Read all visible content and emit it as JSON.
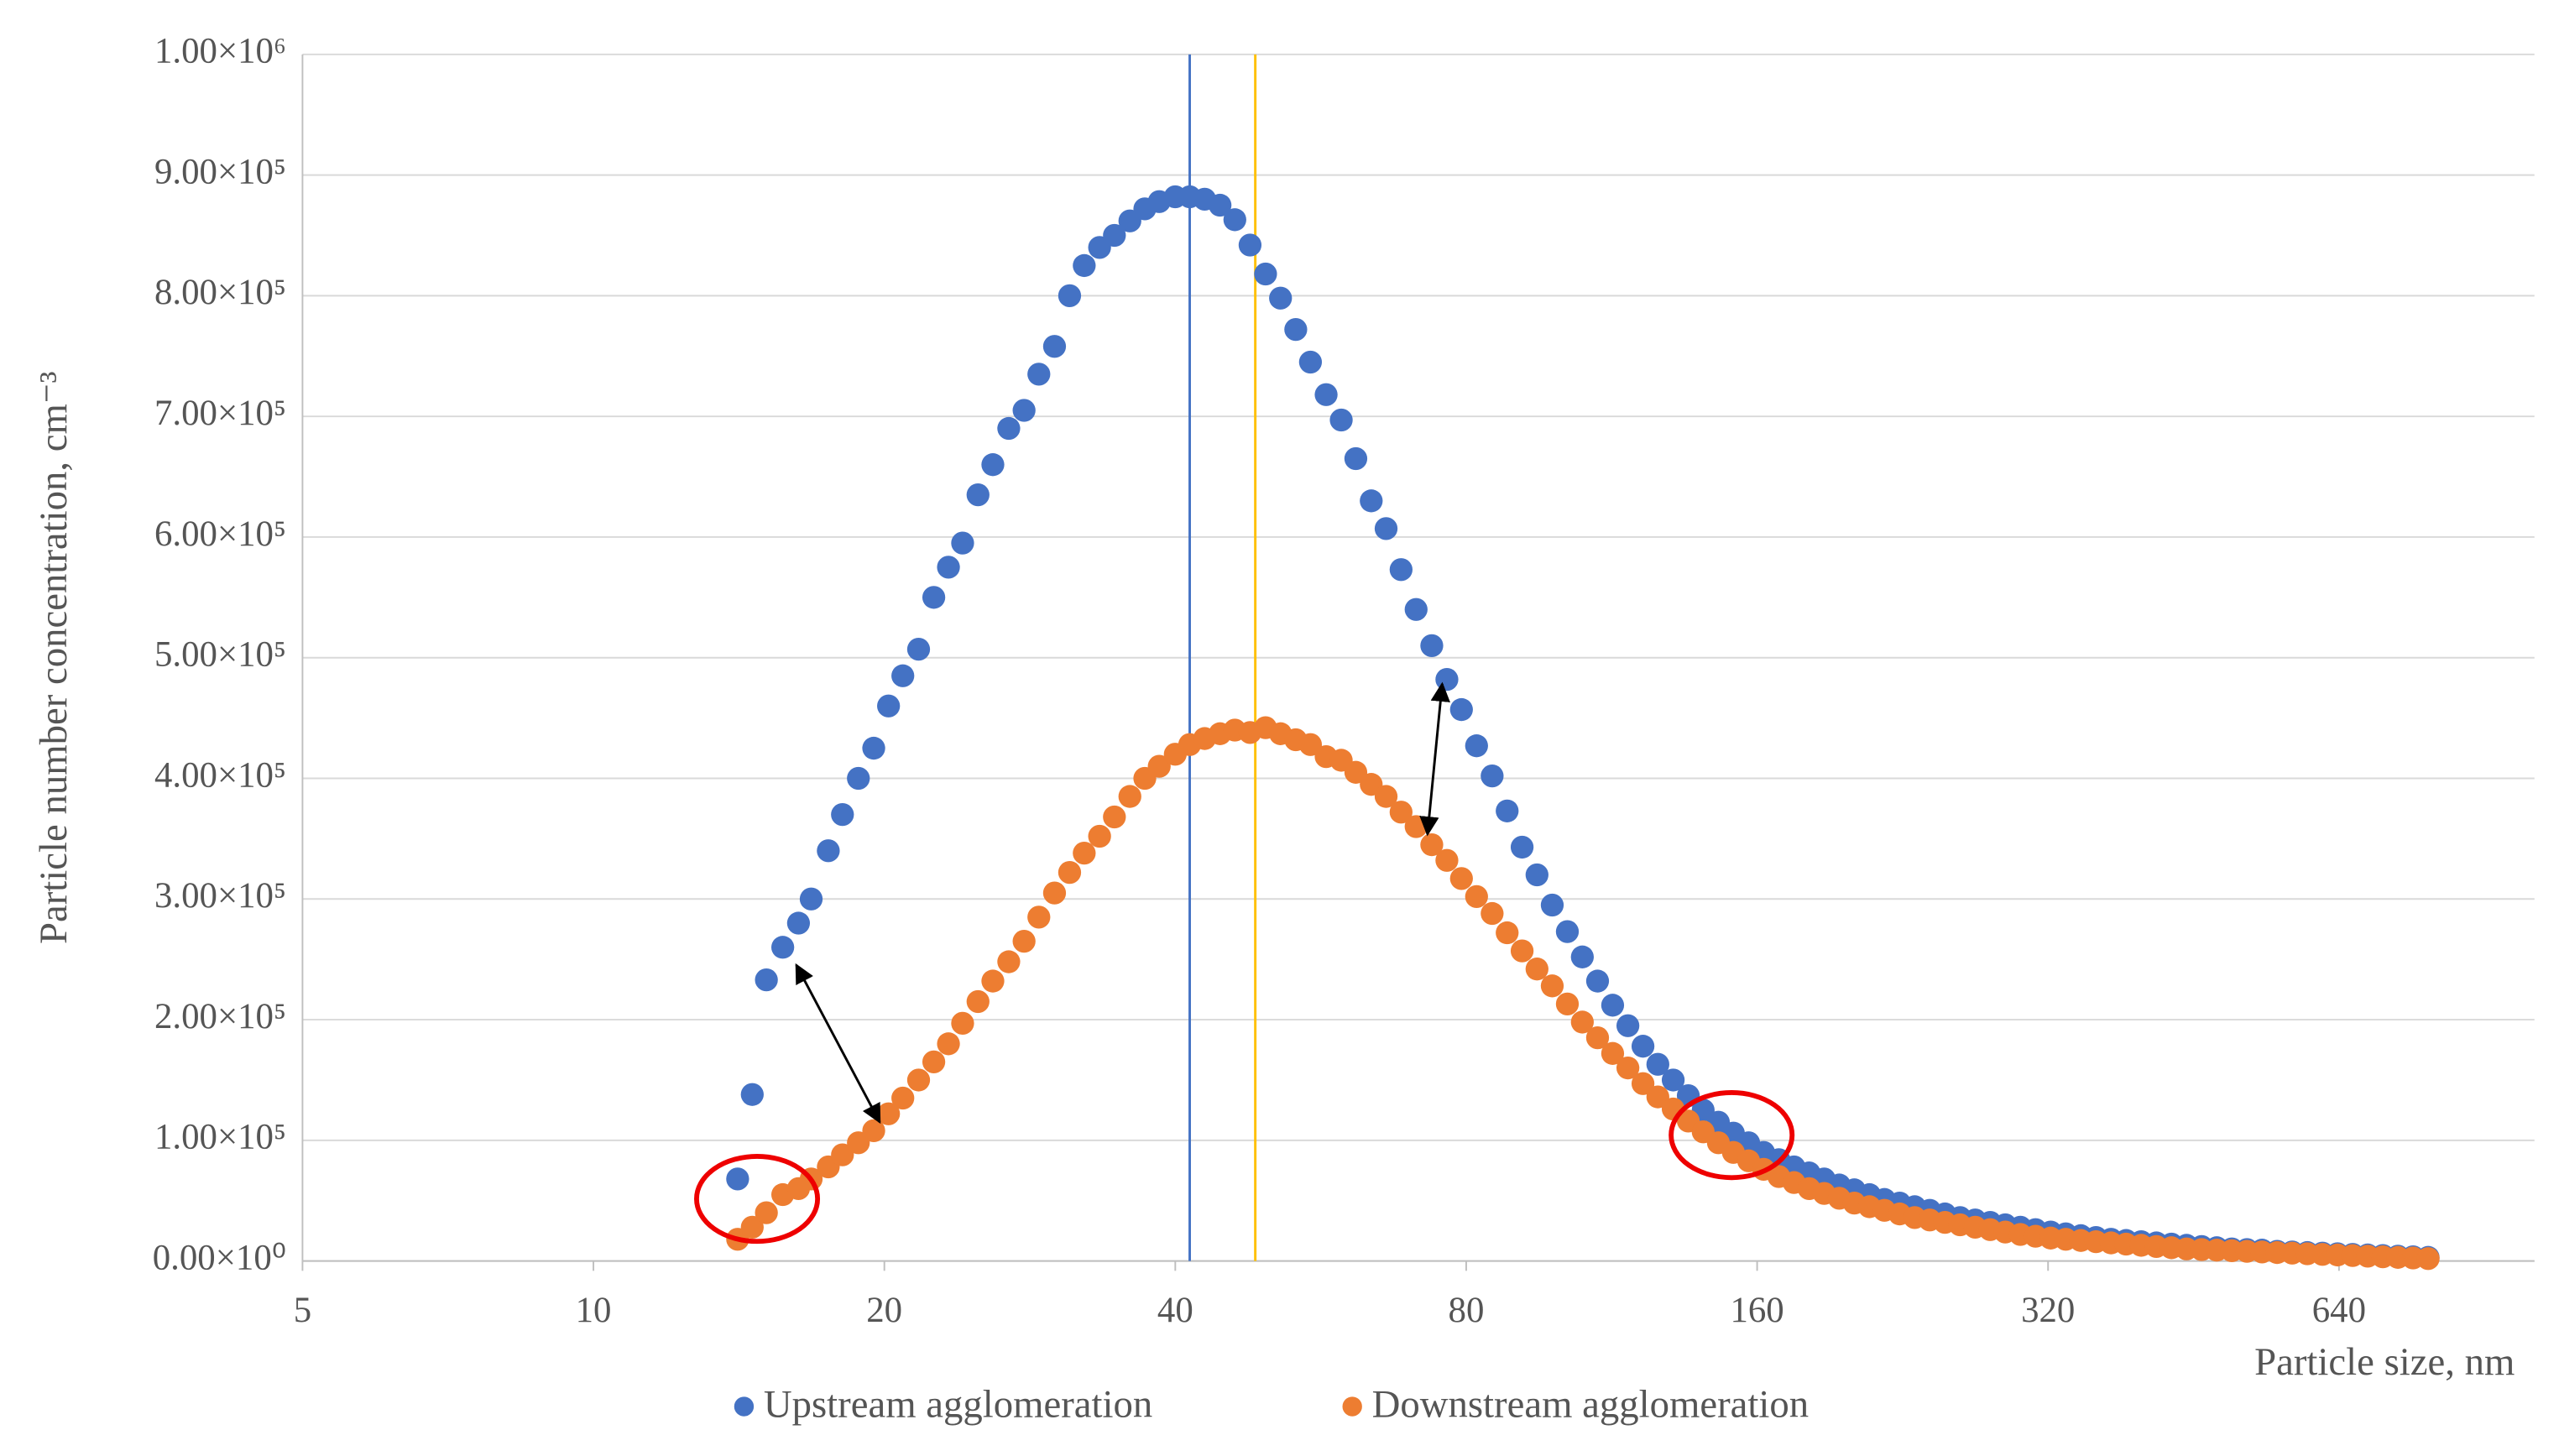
{
  "chart_data": {
    "type": "scatter",
    "xlabel": "Particle size, nm",
    "ylabel": "Particle number concentration, cm⁻³",
    "xscale": "log",
    "xlim": [
      5,
      1000
    ],
    "xticks": [
      5,
      10,
      20,
      40,
      80,
      160,
      320,
      640
    ],
    "ylim": [
      0,
      1000000
    ],
    "yticks": [
      {
        "value": 0,
        "label": "0.00×10⁰"
      },
      {
        "value": 100000,
        "label": "1.00×10⁵"
      },
      {
        "value": 200000,
        "label": "2.00×10⁵"
      },
      {
        "value": 300000,
        "label": "3.00×10⁵"
      },
      {
        "value": 400000,
        "label": "4.00×10⁵"
      },
      {
        "value": 500000,
        "label": "5.00×10⁵"
      },
      {
        "value": 600000,
        "label": "6.00×10⁵"
      },
      {
        "value": 700000,
        "label": "7.00×10⁵"
      },
      {
        "value": 800000,
        "label": "8.00×10⁵"
      },
      {
        "value": 900000,
        "label": "9.00×10⁵"
      },
      {
        "value": 1000000,
        "label": "1.00×10⁶"
      }
    ],
    "grid": true,
    "legend": "bottom",
    "reference_lines": [
      {
        "x": 41.4,
        "color": "#4472c4"
      },
      {
        "x": 48.4,
        "color": "#ffc000"
      }
    ],
    "x": [
      14.1,
      14.6,
      15.1,
      15.7,
      16.3,
      16.8,
      17.5,
      18.1,
      18.8,
      19.5,
      20.2,
      20.9,
      21.7,
      22.5,
      23.3,
      24.1,
      25.0,
      25.9,
      26.9,
      27.9,
      28.9,
      30.0,
      31.1,
      32.2,
      33.4,
      34.6,
      35.9,
      37.2,
      38.5,
      40.0,
      41.4,
      42.9,
      44.5,
      46.1,
      47.8,
      49.6,
      51.4,
      53.3,
      55.2,
      57.3,
      59.4,
      61.5,
      63.8,
      66.1,
      68.5,
      71.0,
      73.7,
      76.4,
      79.1,
      82.0,
      85.1,
      88.2,
      91.4,
      94.7,
      98.2,
      101.8,
      105.5,
      109.4,
      113.4,
      117.6,
      121.9,
      126.3,
      131.0,
      135.8,
      140.7,
      145.9,
      151.2,
      156.8,
      162.5,
      168.5,
      174.7,
      181.1,
      187.7,
      194.6,
      201.7,
      209.1,
      216.7,
      224.7,
      232.9,
      241.4,
      250.3,
      259.5,
      269.0,
      278.8,
      289.0,
      299.6,
      310.6,
      322.0,
      333.8,
      346.0,
      358.7,
      371.8,
      385.4,
      399.5,
      414.2,
      429.4,
      445.1,
      461.4,
      478.3,
      495.8,
      514.0,
      532.8,
      552.3,
      572.5,
      593.5,
      615.3,
      637.8,
      661.2,
      685.4,
      710.5,
      736.5,
      763.5,
      791.5
    ],
    "series": [
      {
        "name": "Upstream agglomeration",
        "color": "#4472c4",
        "values": [
          68000,
          138000,
          233000,
          260000,
          280000,
          300000,
          340000,
          370000,
          400000,
          425000,
          460000,
          485000,
          507000,
          550000,
          575000,
          595000,
          635000,
          660000,
          690000,
          705000,
          735000,
          758000,
          800000,
          825000,
          840000,
          850000,
          862000,
          872000,
          878000,
          882000,
          882000,
          880000,
          875000,
          863000,
          842000,
          818000,
          798000,
          772000,
          745000,
          718000,
          697000,
          665000,
          630000,
          607000,
          573000,
          540000,
          510000,
          482000,
          457000,
          427000,
          402000,
          373000,
          343000,
          320000,
          295000,
          273000,
          252000,
          232000,
          212000,
          195000,
          178000,
          163000,
          150000,
          137000,
          125000,
          115000,
          106000,
          98000,
          90000,
          84000,
          78000,
          73000,
          68000,
          63000,
          59000,
          55000,
          51000,
          48000,
          45000,
          42000,
          39000,
          36000,
          34000,
          32000,
          30000,
          28000,
          26000,
          24000,
          22500,
          21000,
          19500,
          18000,
          17000,
          16000,
          15000,
          14000,
          13000,
          12000,
          11000,
          10000,
          9500,
          9000,
          8000,
          7500,
          7000,
          6500,
          6000,
          5500,
          5000,
          4500,
          4000,
          3500,
          3000
        ]
      },
      {
        "name": "Downstream agglomeration",
        "color": "#ed7d31",
        "values": [
          18000,
          28000,
          40000,
          55000,
          60000,
          68000,
          78000,
          88000,
          98000,
          108000,
          122000,
          135000,
          150000,
          165000,
          180000,
          197000,
          215000,
          232000,
          248000,
          265000,
          285000,
          305000,
          322000,
          338000,
          352000,
          368000,
          385000,
          400000,
          410000,
          420000,
          428000,
          433000,
          437000,
          440000,
          438000,
          442000,
          437000,
          432000,
          428000,
          418000,
          415000,
          405000,
          395000,
          385000,
          372000,
          360000,
          345000,
          332000,
          317000,
          302000,
          288000,
          272000,
          257000,
          242000,
          228000,
          213000,
          198000,
          185000,
          172000,
          160000,
          147000,
          136000,
          126000,
          116000,
          107000,
          98000,
          90000,
          83000,
          76000,
          70000,
          65000,
          60000,
          56000,
          52000,
          48000,
          45000,
          42000,
          39000,
          36000,
          34000,
          32000,
          30000,
          28000,
          26000,
          24000,
          22000,
          20500,
          19000,
          18000,
          17000,
          16000,
          15000,
          14000,
          13000,
          12000,
          11000,
          10000,
          9500,
          9000,
          8500,
          8000,
          7500,
          7000,
          6500,
          6000,
          5500,
          5000,
          4500,
          4000,
          3500,
          3000,
          2500,
          2000
        ]
      }
    ]
  }
}
